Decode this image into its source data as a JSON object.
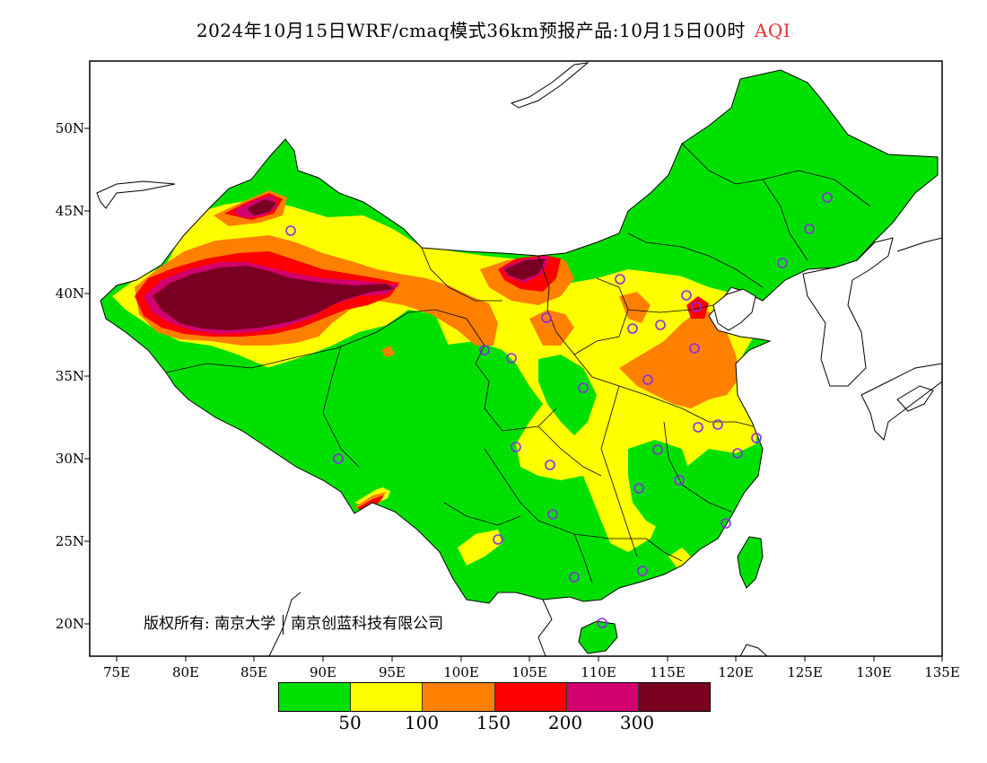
{
  "title": {
    "main": "2024年10月15日WRF/cmaq模式36km预报产品:10月15日00时",
    "variable": "AQI"
  },
  "copyright": {
    "label": "版权所有:",
    "owner1": "南京大学",
    "owner2": "南京创蓝科技有限公司"
  },
  "axes": {
    "lat_ticks": [
      "50N",
      "45N",
      "40N",
      "35N",
      "30N",
      "25N",
      "20N"
    ],
    "lon_ticks": [
      "75E",
      "80E",
      "85E",
      "90E",
      "95E",
      "100E",
      "105E",
      "110E",
      "115E",
      "120E",
      "125E",
      "130E",
      "135E"
    ]
  },
  "legend": {
    "colors": [
      "#00e000",
      "#ffff00",
      "#ff8000",
      "#ff0000",
      "#d2006e",
      "#7a0022"
    ],
    "ticks": [
      "50",
      "100",
      "150",
      "200",
      "300"
    ]
  },
  "map": {
    "ocean_color": "#ffffff",
    "frame_color": "#000000",
    "levels": {
      "good": "#00e000",
      "moderate": "#ffff00",
      "usg": "#ff8000",
      "unhealthy": "#ff0000",
      "very_unhealthy": "#d2006e",
      "hazardous": "#7a0022"
    },
    "station_marker_color": "#8a2be2"
  }
}
